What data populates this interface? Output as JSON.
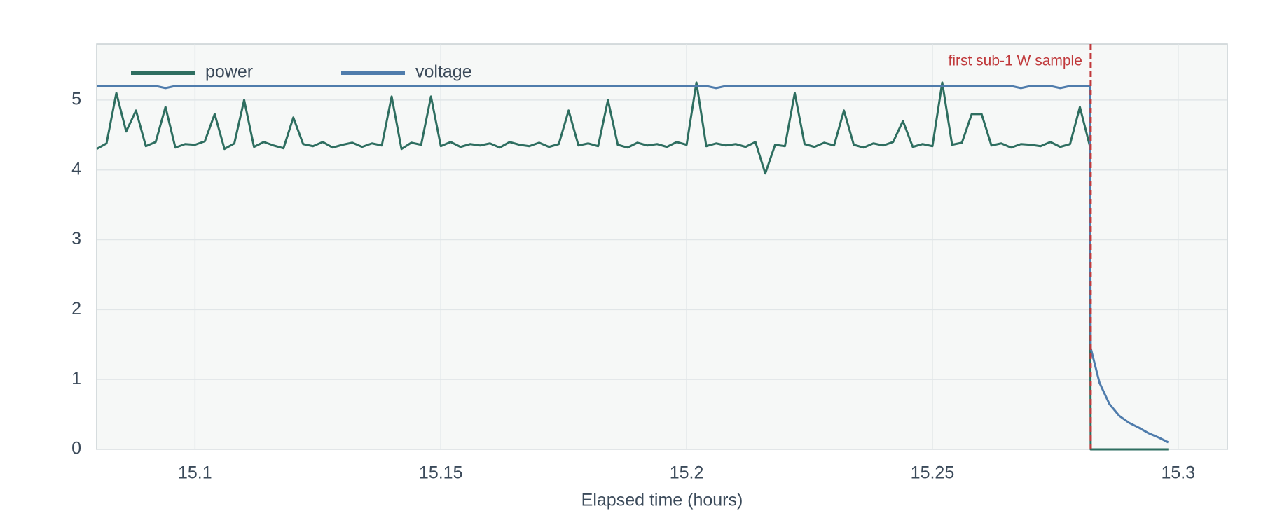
{
  "chart_data": {
    "type": "line",
    "x_label": "Elapsed time (hours)",
    "x": [
      15.08,
      15.082,
      15.084,
      15.086,
      15.088,
      15.09,
      15.092,
      15.094,
      15.096,
      15.098,
      15.1,
      15.102,
      15.104,
      15.106,
      15.108,
      15.11,
      15.112,
      15.114,
      15.116,
      15.118,
      15.12,
      15.122,
      15.124,
      15.126,
      15.128,
      15.13,
      15.132,
      15.134,
      15.136,
      15.138,
      15.14,
      15.142,
      15.144,
      15.146,
      15.148,
      15.15,
      15.152,
      15.154,
      15.156,
      15.158,
      15.16,
      15.162,
      15.164,
      15.166,
      15.168,
      15.17,
      15.172,
      15.174,
      15.176,
      15.178,
      15.18,
      15.182,
      15.184,
      15.186,
      15.188,
      15.19,
      15.192,
      15.194,
      15.196,
      15.198,
      15.2,
      15.202,
      15.204,
      15.206,
      15.208,
      15.21,
      15.212,
      15.214,
      15.216,
      15.218,
      15.22,
      15.222,
      15.224,
      15.226,
      15.228,
      15.23,
      15.232,
      15.234,
      15.236,
      15.238,
      15.24,
      15.242,
      15.244,
      15.246,
      15.248,
      15.25,
      15.252,
      15.254,
      15.256,
      15.258,
      15.26,
      15.262,
      15.264,
      15.266,
      15.268,
      15.27,
      15.272,
      15.274,
      15.276,
      15.278,
      15.28,
      15.282,
      15.2822,
      15.284,
      15.286,
      15.288,
      15.29,
      15.292,
      15.294,
      15.296,
      15.298
    ],
    "series": [
      {
        "name": "power",
        "color": "#2e6e60",
        "values": [
          4.3,
          4.38,
          5.1,
          4.55,
          4.85,
          4.34,
          4.4,
          4.9,
          4.32,
          4.37,
          4.36,
          4.41,
          4.8,
          4.3,
          4.38,
          5.0,
          4.33,
          4.4,
          4.35,
          4.31,
          4.75,
          4.37,
          4.34,
          4.4,
          4.32,
          4.36,
          4.39,
          4.33,
          4.38,
          4.35,
          5.05,
          4.3,
          4.39,
          4.36,
          5.05,
          4.34,
          4.4,
          4.33,
          4.37,
          4.35,
          4.38,
          4.32,
          4.4,
          4.36,
          4.34,
          4.39,
          4.33,
          4.37,
          4.85,
          4.35,
          4.38,
          4.34,
          5.0,
          4.36,
          4.32,
          4.39,
          4.35,
          4.37,
          4.33,
          4.4,
          4.36,
          5.25,
          4.34,
          4.38,
          4.35,
          4.37,
          4.33,
          4.4,
          3.95,
          4.36,
          4.34,
          5.1,
          4.37,
          4.33,
          4.39,
          4.35,
          4.85,
          4.36,
          4.32,
          4.38,
          4.35,
          4.4,
          4.7,
          4.33,
          4.37,
          4.34,
          5.25,
          4.36,
          4.39,
          4.8,
          4.8,
          4.35,
          4.38,
          4.32,
          4.37,
          4.36,
          4.34,
          4.4,
          4.33,
          4.37,
          4.9,
          4.35,
          0,
          0,
          0,
          0,
          0,
          0,
          0,
          0,
          0
        ]
      },
      {
        "name": "voltage",
        "color": "#4f7cac",
        "values": [
          5.2,
          5.2,
          5.2,
          5.2,
          5.2,
          5.2,
          5.2,
          5.17,
          5.2,
          5.2,
          5.2,
          5.2,
          5.2,
          5.2,
          5.2,
          5.2,
          5.2,
          5.2,
          5.2,
          5.2,
          5.2,
          5.2,
          5.2,
          5.2,
          5.2,
          5.2,
          5.2,
          5.2,
          5.2,
          5.2,
          5.2,
          5.2,
          5.2,
          5.2,
          5.2,
          5.2,
          5.2,
          5.2,
          5.2,
          5.2,
          5.2,
          5.2,
          5.2,
          5.2,
          5.2,
          5.2,
          5.2,
          5.2,
          5.2,
          5.2,
          5.2,
          5.2,
          5.2,
          5.2,
          5.2,
          5.2,
          5.2,
          5.2,
          5.2,
          5.2,
          5.2,
          5.2,
          5.2,
          5.17,
          5.2,
          5.2,
          5.2,
          5.2,
          5.2,
          5.2,
          5.2,
          5.2,
          5.2,
          5.2,
          5.2,
          5.2,
          5.2,
          5.2,
          5.2,
          5.2,
          5.2,
          5.2,
          5.2,
          5.2,
          5.2,
          5.2,
          5.2,
          5.2,
          5.2,
          5.2,
          5.2,
          5.2,
          5.2,
          5.2,
          5.17,
          5.2,
          5.2,
          5.2,
          5.17,
          5.2,
          5.2,
          5.2,
          1.45,
          0.95,
          0.65,
          0.48,
          0.38,
          0.31,
          0.23,
          0.17,
          0.1
        ]
      }
    ],
    "xlim": [
      15.08,
      15.31
    ],
    "xticks": [
      15.1,
      15.15,
      15.2,
      15.25,
      15.3
    ],
    "ylim": [
      0,
      5.8
    ],
    "yticks": [
      0,
      1,
      2,
      3,
      4,
      5
    ],
    "grid": true,
    "legend": "top-left",
    "annotation": {
      "text": "first sub-1 W sample",
      "x": 15.2822,
      "color": "#c0393b"
    }
  }
}
